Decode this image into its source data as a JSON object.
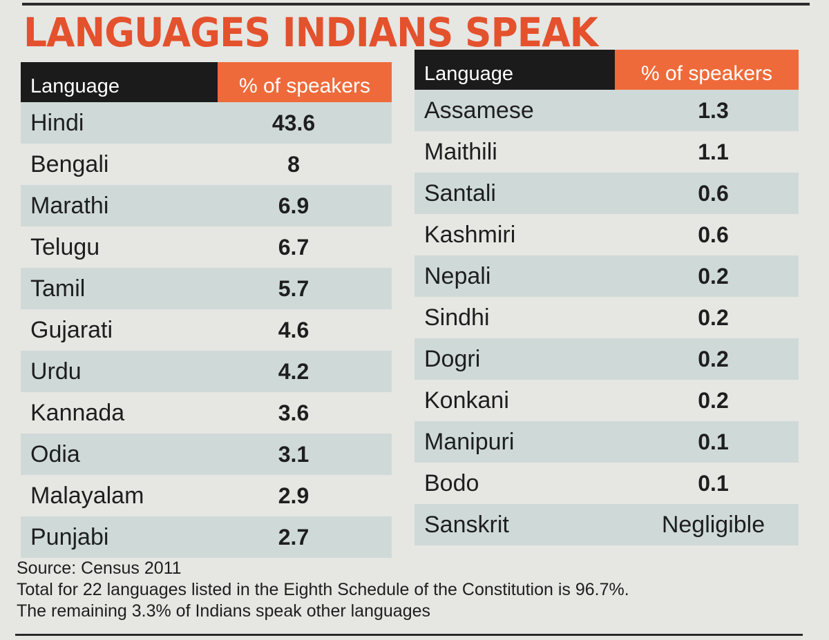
{
  "title": "LANGUAGES INDIANS SPEAK",
  "left_table": {
    "header": {
      "language": "Language",
      "percent": "% of speakers"
    },
    "rows": [
      {
        "language": "Hindi",
        "percent": "43.6"
      },
      {
        "language": "Bengali",
        "percent": "8"
      },
      {
        "language": "Marathi",
        "percent": "6.9"
      },
      {
        "language": "Telugu",
        "percent": "6.7"
      },
      {
        "language": "Tamil",
        "percent": "5.7"
      },
      {
        "language": "Gujarati",
        "percent": "4.6"
      },
      {
        "language": "Urdu",
        "percent": "4.2"
      },
      {
        "language": "Kannada",
        "percent": "3.6"
      },
      {
        "language": "Odia",
        "percent": "3.1"
      },
      {
        "language": "Malayalam",
        "percent": "2.9"
      },
      {
        "language": "Punjabi",
        "percent": "2.7"
      }
    ]
  },
  "right_table": {
    "header": {
      "language": "Language",
      "percent": "% of speakers"
    },
    "rows": [
      {
        "language": "Assamese",
        "percent": "1.3"
      },
      {
        "language": "Maithili",
        "percent": "1.1"
      },
      {
        "language": "Santali",
        "percent": "0.6"
      },
      {
        "language": "Kashmiri",
        "percent": "0.6"
      },
      {
        "language": "Nepali",
        "percent": "0.2"
      },
      {
        "language": "Sindhi",
        "percent": "0.2"
      },
      {
        "language": "Dogri",
        "percent": "0.2"
      },
      {
        "language": "Konkani",
        "percent": "0.2"
      },
      {
        "language": "Manipuri",
        "percent": "0.1"
      },
      {
        "language": "Bodo",
        "percent": "0.1"
      },
      {
        "language": "Sanskrit",
        "percent": "Negligible"
      }
    ]
  },
  "notes": {
    "source": "Source: Census 2011",
    "line1": "Total for 22 languages listed in the Eighth Schedule of the Constitution is 96.7%.",
    "line2": "The remaining 3.3% of Indians speak other languages"
  },
  "colors": {
    "title": "#e4512d",
    "header_dark": "#1c1b1c",
    "header_orange": "#ef6a3a",
    "row_stripe": "#cfdad8"
  }
}
